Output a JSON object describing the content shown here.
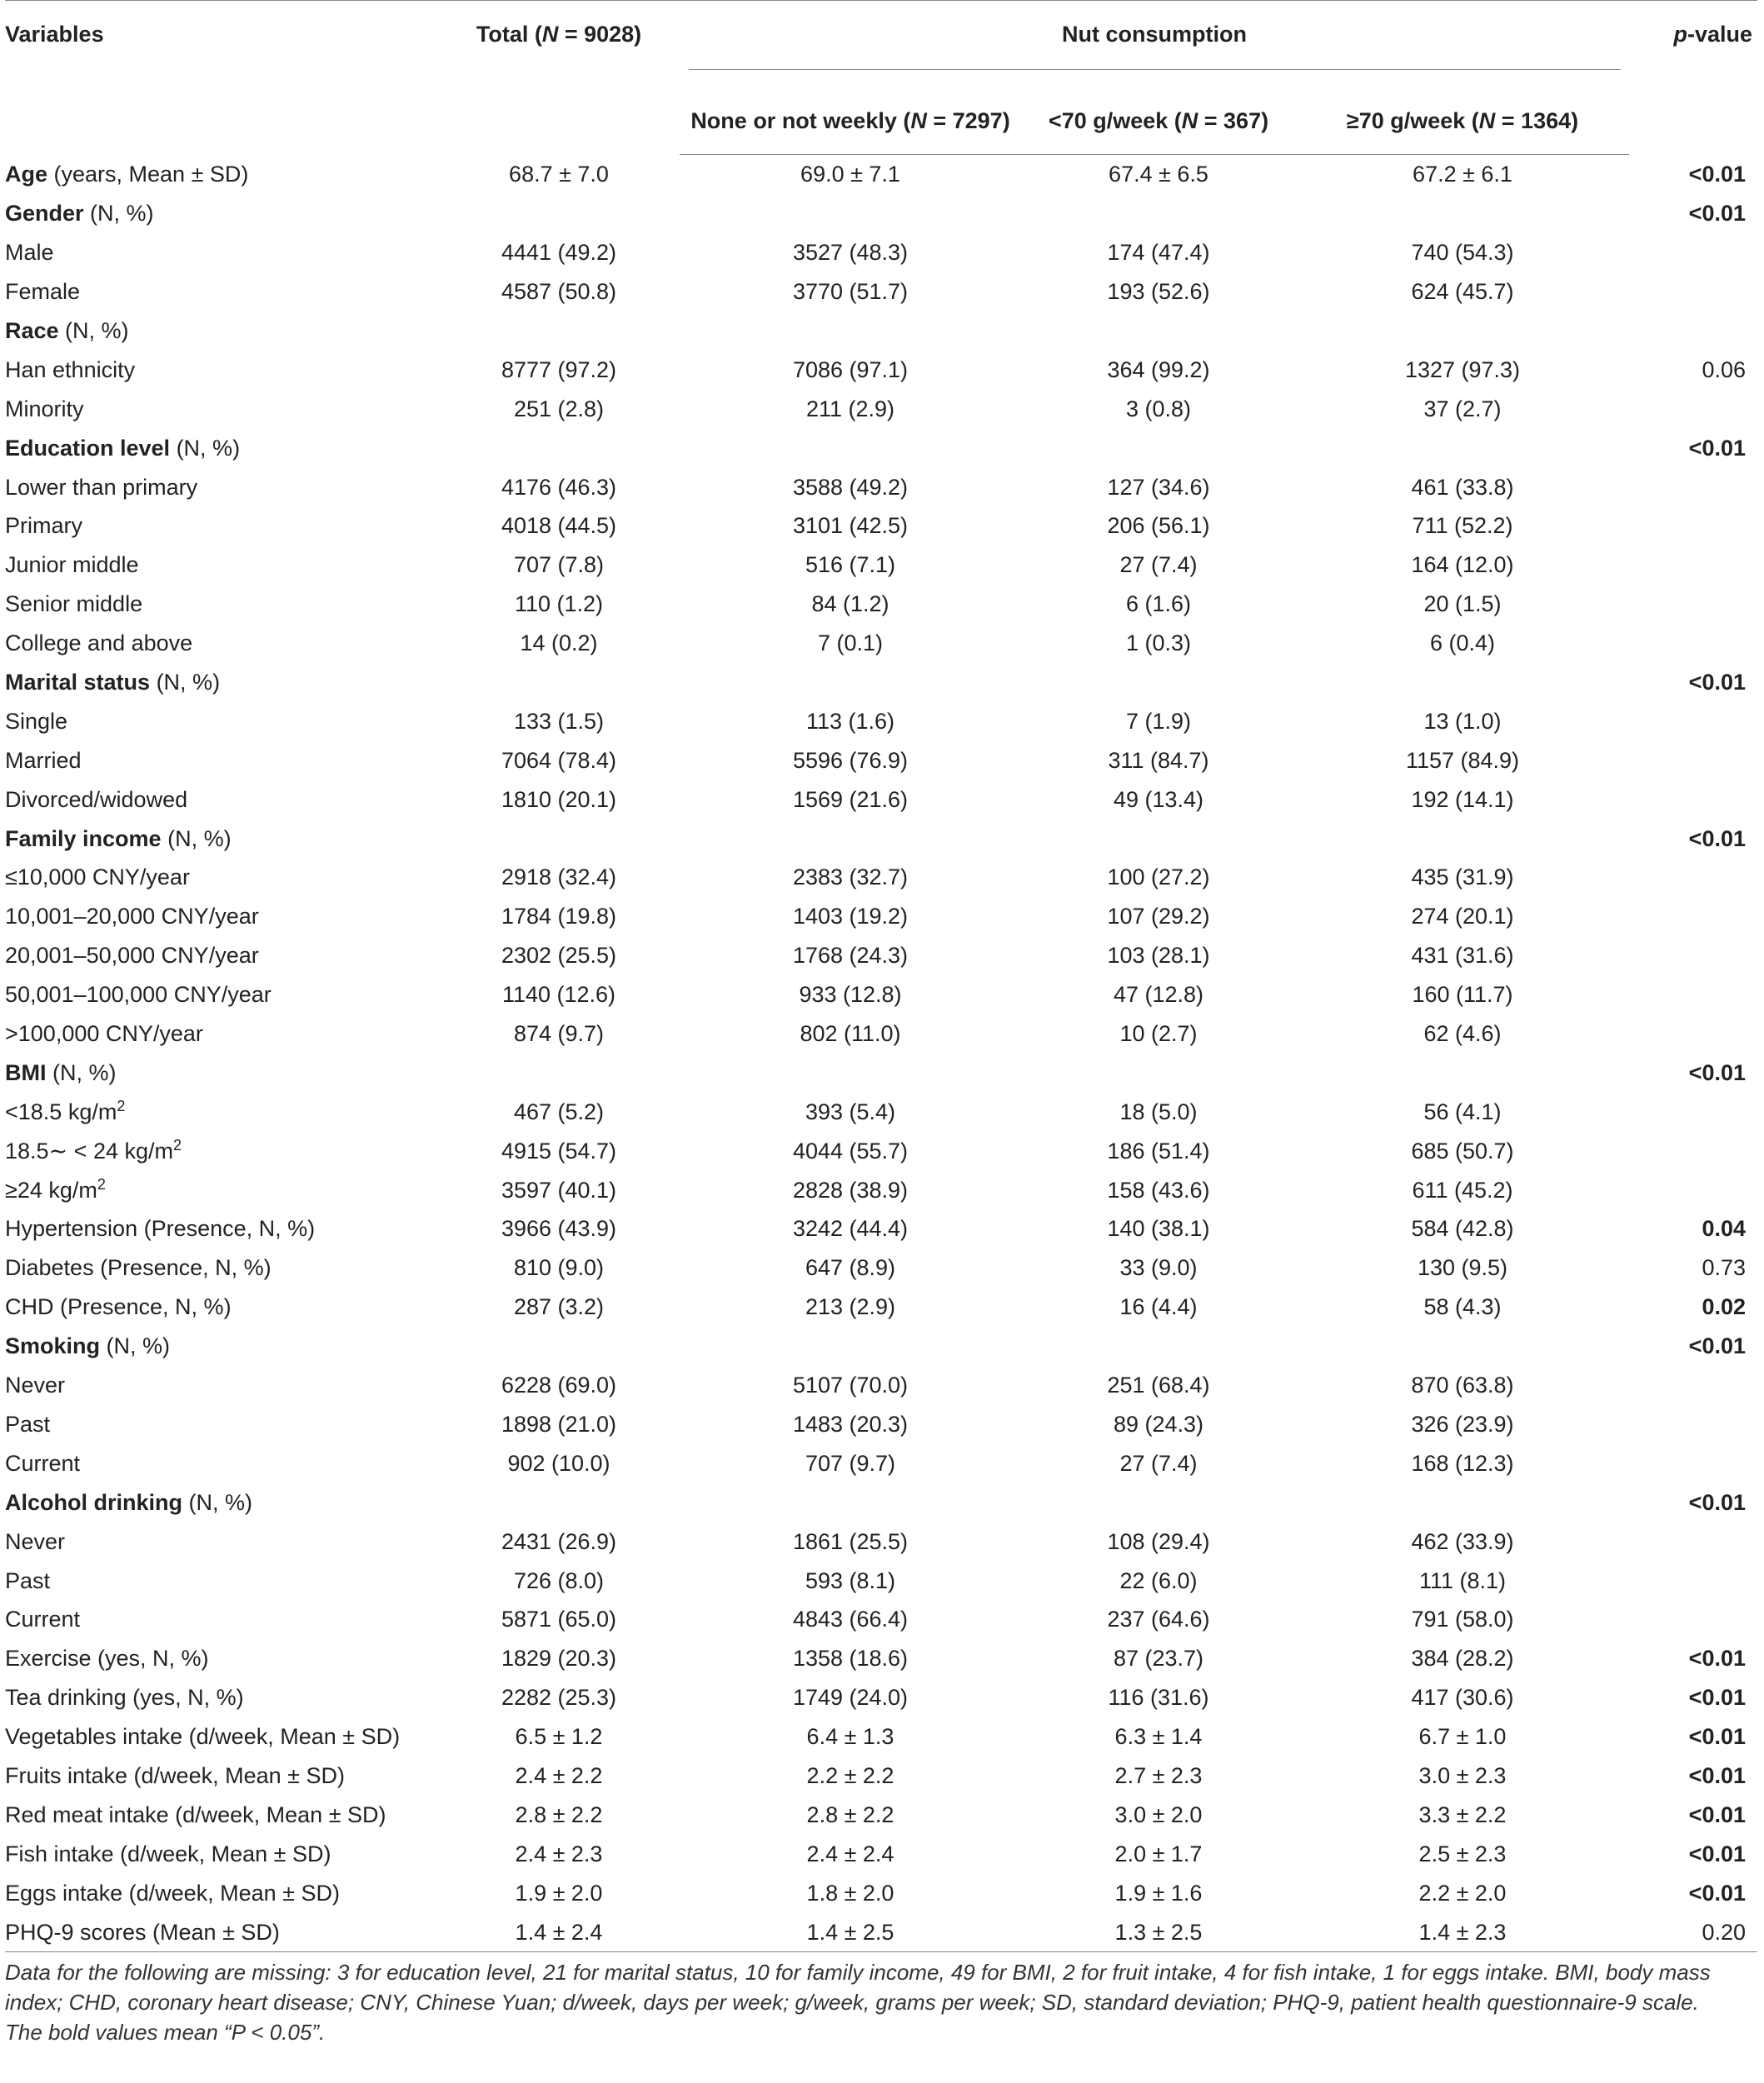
{
  "header": {
    "variables": "Variables",
    "total_prefix": "Total (",
    "total_n": "N",
    "total_suffix": " = 9028)",
    "nut_consumption": "Nut consumption",
    "p_value_italic": "p",
    "p_value_rest": "-value",
    "groups": [
      {
        "prefix": "None or not weekly (",
        "n": "N",
        "suffix": " = 7297)"
      },
      {
        "prefix": "<70 g/week (",
        "n": "N",
        "suffix": " = 367)"
      },
      {
        "prefix": "≥70 g/week (",
        "n": "N",
        "suffix": " = 1364)"
      }
    ]
  },
  "rows": [
    {
      "b": "Age",
      "l": " (years, Mean ± SD)",
      "t": "68.7 ± 7.0",
      "g1": "69.0 ± 7.1",
      "g2": "67.4 ± 6.5",
      "g3": "67.2 ± 6.1",
      "p": "<0.01",
      "pb": true
    },
    {
      "b": "Gender",
      "l": " (N, %)",
      "t": "",
      "g1": "",
      "g2": "",
      "g3": "",
      "p": "<0.01",
      "pb": true
    },
    {
      "b": "",
      "l": "Male",
      "t": "4441 (49.2)",
      "g1": "3527 (48.3)",
      "g2": "174 (47.4)",
      "g3": "740 (54.3)",
      "p": "",
      "pb": false
    },
    {
      "b": "",
      "l": "Female",
      "t": "4587 (50.8)",
      "g1": "3770 (51.7)",
      "g2": "193 (52.6)",
      "g3": "624 (45.7)",
      "p": "",
      "pb": false
    },
    {
      "b": "Race",
      "l": " (N, %)",
      "t": "",
      "g1": "",
      "g2": "",
      "g3": "",
      "p": "",
      "pb": false
    },
    {
      "b": "",
      "l": "Han ethnicity",
      "t": "8777 (97.2)",
      "g1": "7086 (97.1)",
      "g2": "364 (99.2)",
      "g3": "1327 (97.3)",
      "p": "0.06",
      "pb": false
    },
    {
      "b": "",
      "l": "Minority",
      "t": "251 (2.8)",
      "g1": "211 (2.9)",
      "g2": "3 (0.8)",
      "g3": "37 (2.7)",
      "p": "",
      "pb": false
    },
    {
      "b": "Education level",
      "l": " (N, %)",
      "t": "",
      "g1": "",
      "g2": "",
      "g3": "",
      "p": "<0.01",
      "pb": true
    },
    {
      "b": "",
      "l": "Lower than primary",
      "t": "4176 (46.3)",
      "g1": "3588 (49.2)",
      "g2": "127 (34.6)",
      "g3": "461 (33.8)",
      "p": "",
      "pb": false
    },
    {
      "b": "",
      "l": "Primary",
      "t": "4018 (44.5)",
      "g1": "3101 (42.5)",
      "g2": "206 (56.1)",
      "g3": "711 (52.2)",
      "p": "",
      "pb": false
    },
    {
      "b": "",
      "l": "Junior middle",
      "t": "707 (7.8)",
      "g1": "516 (7.1)",
      "g2": "27 (7.4)",
      "g3": "164 (12.0)",
      "p": "",
      "pb": false
    },
    {
      "b": "",
      "l": "Senior middle",
      "t": "110 (1.2)",
      "g1": "84 (1.2)",
      "g2": "6 (1.6)",
      "g3": "20 (1.5)",
      "p": "",
      "pb": false
    },
    {
      "b": "",
      "l": "College and above",
      "t": "14 (0.2)",
      "g1": "7 (0.1)",
      "g2": "1 (0.3)",
      "g3": "6 (0.4)",
      "p": "",
      "pb": false
    },
    {
      "b": "Marital status",
      "l": " (N, %)",
      "t": "",
      "g1": "",
      "g2": "",
      "g3": "",
      "p": "<0.01",
      "pb": true
    },
    {
      "b": "",
      "l": "Single",
      "t": "133 (1.5)",
      "g1": "113 (1.6)",
      "g2": "7 (1.9)",
      "g3": "13 (1.0)",
      "p": "",
      "pb": false
    },
    {
      "b": "",
      "l": "Married",
      "t": "7064 (78.4)",
      "g1": "5596 (76.9)",
      "g2": "311 (84.7)",
      "g3": "1157 (84.9)",
      "p": "",
      "pb": false
    },
    {
      "b": "",
      "l": "Divorced/widowed",
      "t": "1810 (20.1)",
      "g1": "1569 (21.6)",
      "g2": "49 (13.4)",
      "g3": "192 (14.1)",
      "p": "",
      "pb": false
    },
    {
      "b": "Family income",
      "l": " (N, %)",
      "t": "",
      "g1": "",
      "g2": "",
      "g3": "",
      "p": "<0.01",
      "pb": true
    },
    {
      "b": "",
      "l": "≤10,000 CNY/year",
      "t": "2918 (32.4)",
      "g1": "2383 (32.7)",
      "g2": "100 (27.2)",
      "g3": "435 (31.9)",
      "p": "",
      "pb": false
    },
    {
      "b": "",
      "l": "10,001–20,000 CNY/year",
      "t": "1784 (19.8)",
      "g1": "1403 (19.2)",
      "g2": "107 (29.2)",
      "g3": "274 (20.1)",
      "p": "",
      "pb": false
    },
    {
      "b": "",
      "l": "20,001–50,000 CNY/year",
      "t": "2302 (25.5)",
      "g1": "1768 (24.3)",
      "g2": "103 (28.1)",
      "g3": "431 (31.6)",
      "p": "",
      "pb": false
    },
    {
      "b": "",
      "l": "50,001–100,000 CNY/year",
      "t": "1140 (12.6)",
      "g1": "933 (12.8)",
      "g2": "47 (12.8)",
      "g3": "160 (11.7)",
      "p": "",
      "pb": false
    },
    {
      "b": "",
      "l": ">100,000 CNY/year",
      "t": "874 (9.7)",
      "g1": "802 (11.0)",
      "g2": "10 (2.7)",
      "g3": "62 (4.6)",
      "p": "",
      "pb": false
    },
    {
      "b": "BMI",
      "l": " (N, %)",
      "t": "",
      "g1": "",
      "g2": "",
      "g3": "",
      "p": "<0.01",
      "pb": true
    },
    {
      "b": "",
      "l": "<18.5 kg/m",
      "sup": "2",
      "t": "467 (5.2)",
      "g1": "393 (5.4)",
      "g2": "18 (5.0)",
      "g3": "56 (4.1)",
      "p": "",
      "pb": false
    },
    {
      "b": "",
      "l": "18.5∼ < 24 kg/m",
      "sup": "2",
      "t": "4915 (54.7)",
      "g1": "4044 (55.7)",
      "g2": "186 (51.4)",
      "g3": "685 (50.7)",
      "p": "",
      "pb": false
    },
    {
      "b": "",
      "l": "≥24 kg/m",
      "sup": "2",
      "t": "3597 (40.1)",
      "g1": "2828 (38.9)",
      "g2": "158 (43.6)",
      "g3": "611 (45.2)",
      "p": "",
      "pb": false
    },
    {
      "b": "",
      "l": "Hypertension (Presence, N, %)",
      "t": "3966 (43.9)",
      "g1": "3242 (44.4)",
      "g2": "140 (38.1)",
      "g3": "584 (42.8)",
      "p": "0.04",
      "pb": true
    },
    {
      "b": "",
      "l": "Diabetes (Presence, N, %)",
      "t": "810 (9.0)",
      "g1": "647 (8.9)",
      "g2": "33 (9.0)",
      "g3": "130 (9.5)",
      "p": "0.73",
      "pb": false
    },
    {
      "b": "",
      "l": "CHD (Presence, N, %)",
      "t": "287 (3.2)",
      "g1": "213 (2.9)",
      "g2": "16 (4.4)",
      "g3": "58 (4.3)",
      "p": "0.02",
      "pb": true
    },
    {
      "b": "Smoking",
      "l": " (N, %)",
      "t": "",
      "g1": "",
      "g2": "",
      "g3": "",
      "p": "<0.01",
      "pb": true
    },
    {
      "b": "",
      "l": "Never",
      "t": "6228 (69.0)",
      "g1": "5107 (70.0)",
      "g2": "251 (68.4)",
      "g3": "870 (63.8)",
      "p": "",
      "pb": false
    },
    {
      "b": "",
      "l": "Past",
      "t": "1898 (21.0)",
      "g1": "1483 (20.3)",
      "g2": "89 (24.3)",
      "g3": "326 (23.9)",
      "p": "",
      "pb": false
    },
    {
      "b": "",
      "l": "Current",
      "t": "902 (10.0)",
      "g1": "707 (9.7)",
      "g2": "27 (7.4)",
      "g3": "168 (12.3)",
      "p": "",
      "pb": false
    },
    {
      "b": "Alcohol drinking",
      "l": " (N, %)",
      "t": "",
      "g1": "",
      "g2": "",
      "g3": "",
      "p": "<0.01",
      "pb": true
    },
    {
      "b": "",
      "l": "Never",
      "t": "2431 (26.9)",
      "g1": "1861 (25.5)",
      "g2": "108 (29.4)",
      "g3": "462 (33.9)",
      "p": "",
      "pb": false
    },
    {
      "b": "",
      "l": "Past",
      "t": "726 (8.0)",
      "g1": "593 (8.1)",
      "g2": "22 (6.0)",
      "g3": "111 (8.1)",
      "p": "",
      "pb": false
    },
    {
      "b": "",
      "l": "Current",
      "t": "5871 (65.0)",
      "g1": "4843 (66.4)",
      "g2": "237 (64.6)",
      "g3": "791 (58.0)",
      "p": "",
      "pb": false
    },
    {
      "b": "",
      "l": "Exercise (yes, N, %)",
      "t": "1829 (20.3)",
      "g1": "1358 (18.6)",
      "g2": "87 (23.7)",
      "g3": "384 (28.2)",
      "p": "<0.01",
      "pb": true
    },
    {
      "b": "",
      "l": "Tea drinking (yes, N, %)",
      "t": "2282 (25.3)",
      "g1": "1749 (24.0)",
      "g2": "116 (31.6)",
      "g3": "417 (30.6)",
      "p": "<0.01",
      "pb": true
    },
    {
      "b": "",
      "l": "Vegetables intake (d/week, Mean ± SD)",
      "t": "6.5 ± 1.2",
      "g1": "6.4 ± 1.3",
      "g2": "6.3 ± 1.4",
      "g3": "6.7 ± 1.0",
      "p": "<0.01",
      "pb": true
    },
    {
      "b": "",
      "l": "Fruits intake (d/week, Mean ± SD)",
      "t": "2.4 ± 2.2",
      "g1": "2.2 ± 2.2",
      "g2": "2.7 ± 2.3",
      "g3": "3.0 ± 2.3",
      "p": "<0.01",
      "pb": true
    },
    {
      "b": "",
      "l": "Red meat intake (d/week, Mean ± SD)",
      "t": "2.8 ± 2.2",
      "g1": "2.8 ± 2.2",
      "g2": "3.0 ± 2.0",
      "g3": "3.3 ± 2.2",
      "p": "<0.01",
      "pb": true
    },
    {
      "b": "",
      "l": "Fish intake (d/week, Mean ± SD)",
      "t": "2.4 ± 2.3",
      "g1": "2.4 ± 2.4",
      "g2": "2.0 ± 1.7",
      "g3": "2.5 ± 2.3",
      "p": "<0.01",
      "pb": true
    },
    {
      "b": "",
      "l": "Eggs intake (d/week, Mean ± SD)",
      "t": "1.9 ± 2.0",
      "g1": "1.8 ± 2.0",
      "g2": "1.9 ± 1.6",
      "g3": "2.2 ± 2.0",
      "p": "<0.01",
      "pb": true
    },
    {
      "b": "",
      "l": "PHQ-9 scores (Mean ± SD)",
      "t": "1.4 ± 2.4",
      "g1": "1.4 ± 2.5",
      "g2": "1.3 ± 2.5",
      "g3": "1.4 ± 2.3",
      "p": "0.20",
      "pb": false
    }
  ],
  "notes": {
    "missing": "Data for the following are missing: 3 for education level, 21 for marital status, 10 for family income, 49 for BMI, 2 for fruit intake, 4 for fish intake, 1 for eggs intake. BMI, body mass index; CHD, coronary heart disease; CNY, Chinese Yuan; d/week, days per week; g/week, grams per week; SD, standard deviation; PHQ-9, patient health questionnaire-9 scale.",
    "bold": "The bold values mean “P < 0.05”."
  }
}
